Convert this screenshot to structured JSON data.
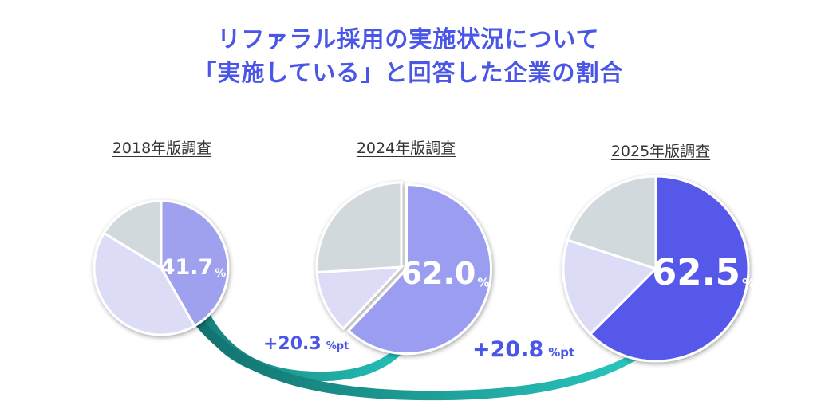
{
  "title": {
    "line1": "リファラル採用の実施状況について",
    "line2": "「実施している」と回答した企業の割合"
  },
  "colors": {
    "title": "#4a57e6",
    "remainder_light": "#dcdcf7",
    "remainder_gray": "#d2d9dc",
    "arrow_teal": "#20c0b8",
    "delta_text": "#4a57e6"
  },
  "chart_data": [
    {
      "type": "pie",
      "title": "2018年版調査",
      "slices": [
        {
          "label": "実施している",
          "value": 41.7,
          "color": "#9fa0ee"
        },
        {
          "label": "",
          "value": 42.0,
          "color": "#dcdcf7"
        },
        {
          "label": "",
          "value": 16.3,
          "color": "#d2d9dc"
        }
      ],
      "value_label": "41.7",
      "unit": "%"
    },
    {
      "type": "pie",
      "title": "2024年版調査",
      "slices": [
        {
          "label": "実施している",
          "value": 62.0,
          "color": "#9b9ef0"
        },
        {
          "label": "",
          "value": 12.0,
          "color": "#dcdcf7"
        },
        {
          "label": "",
          "value": 26.0,
          "color": "#d2d9dc"
        }
      ],
      "value_label": "62.0",
      "unit": "%"
    },
    {
      "type": "pie",
      "title": "2025年版調査",
      "slices": [
        {
          "label": "実施している",
          "value": 62.5,
          "color": "#5558e8"
        },
        {
          "label": "",
          "value": 17.5,
          "color": "#dcdcf7"
        },
        {
          "label": "",
          "value": 20.0,
          "color": "#d2d9dc"
        }
      ],
      "value_label": "62.5",
      "unit": "%"
    }
  ],
  "deltas": [
    {
      "value": "+20.3",
      "unit": "%pt"
    },
    {
      "value": "+20.8",
      "unit": "%pt"
    }
  ]
}
